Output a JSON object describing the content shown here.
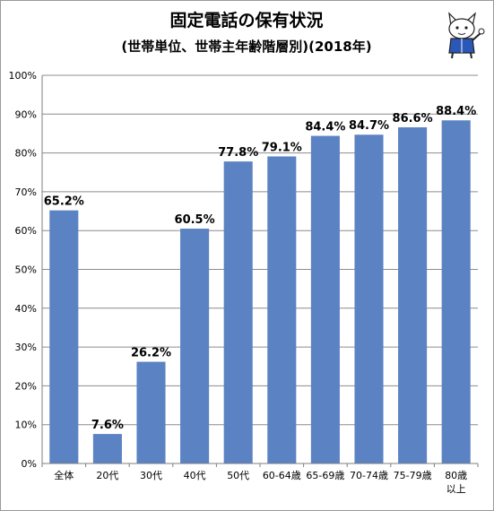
{
  "chart_data": {
    "type": "bar",
    "title": "固定電話の保有状況",
    "subtitle": "(世帯単位、世帯主年齢階層別)(2018年)",
    "xlabel": "",
    "ylabel": "",
    "categories": [
      [
        "全体"
      ],
      [
        "20代"
      ],
      [
        "30代"
      ],
      [
        "40代"
      ],
      [
        "50代"
      ],
      [
        "60-64歳"
      ],
      [
        "65-69歳"
      ],
      [
        "70-74歳"
      ],
      [
        "75-79歳"
      ],
      [
        "80歳",
        "以上"
      ]
    ],
    "values": [
      65.2,
      7.6,
      26.2,
      60.5,
      77.8,
      79.1,
      84.4,
      84.7,
      86.6,
      88.4
    ],
    "value_labels": [
      "65.2%",
      "7.6%",
      "26.2%",
      "60.5%",
      "77.8%",
      "79.1%",
      "84.4%",
      "84.7%",
      "86.6%",
      "88.4%"
    ],
    "ylim": [
      0,
      100
    ],
    "y_ticks": [
      "0%",
      "10%",
      "20%",
      "30%",
      "40%",
      "50%",
      "60%",
      "70%",
      "80%",
      "90%",
      "100%"
    ],
    "grid": true,
    "legend": "none",
    "bar_color": "#5b82c2"
  },
  "mascot": {
    "icon": "mascot-cat-icon"
  }
}
